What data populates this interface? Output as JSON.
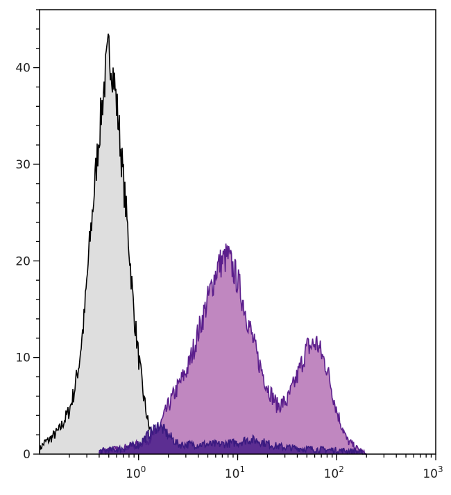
{
  "chart_data": {
    "type": "area",
    "title": "",
    "xlabel": "",
    "ylabel": "",
    "x_scale": "log",
    "xlim": [
      0.1,
      1000
    ],
    "ylim": [
      0,
      46
    ],
    "grid": false,
    "x_ticks": [
      {
        "value": 1,
        "base": "10",
        "exp": "0"
      },
      {
        "value": 10,
        "base": "10",
        "exp": "1"
      },
      {
        "value": 100,
        "base": "10",
        "exp": "2"
      },
      {
        "value": 1000,
        "base": "10",
        "exp": "3"
      }
    ],
    "y_ticks": [
      "0",
      "10",
      "20",
      "30",
      "40"
    ],
    "series": [
      {
        "fill": "#dedede",
        "line": "#000000",
        "log10_x": [
          -1.0,
          -0.95,
          -0.9,
          -0.85,
          -0.8,
          -0.75,
          -0.7,
          -0.65,
          -0.6,
          -0.55,
          -0.5,
          -0.45,
          -0.4,
          -0.35,
          -0.3,
          -0.25,
          -0.2,
          -0.15,
          -0.1,
          -0.05,
          0,
          0.05,
          0.1,
          0.15,
          0.2,
          0.25
        ],
        "values": [
          0.5,
          1.2,
          1.5,
          2,
          2.5,
          3.5,
          4.5,
          6.5,
          9.5,
          14,
          21,
          27,
          33,
          38,
          42,
          39,
          34,
          28,
          22,
          15,
          10,
          6,
          3,
          1.5,
          0.5,
          0
        ]
      },
      {
        "fill": "#c087c0",
        "line": "#5b1e8c",
        "log10_x": [
          -0.4,
          -0.3,
          -0.2,
          -0.1,
          0,
          0.1,
          0.2,
          0.3,
          0.4,
          0.5,
          0.6,
          0.7,
          0.8,
          0.9,
          1.0,
          1.1,
          1.2,
          1.3,
          1.4,
          1.5,
          1.6,
          1.7,
          1.8,
          1.9,
          2.0,
          2.1,
          2.2,
          2.3
        ],
        "values": [
          0.3,
          0.5,
          0.5,
          0.8,
          1,
          1.5,
          2.5,
          5,
          7,
          9,
          12.5,
          16,
          19.5,
          20.5,
          18,
          14,
          10,
          7,
          5,
          5.5,
          8,
          11,
          11.5,
          9,
          4.5,
          1.5,
          0.6,
          0
        ]
      },
      {
        "fill": "#4a1f8a",
        "line": "#3a1a80",
        "log10_x": [
          -0.4,
          -0.2,
          0,
          0.1,
          0.2,
          0.3,
          0.4,
          0.6,
          0.8,
          1.0,
          1.1,
          1.2,
          1.4,
          1.6,
          1.8,
          2.0,
          2.2,
          2.3
        ],
        "values": [
          0.3,
          0.5,
          1,
          2,
          3,
          2,
          1,
          1,
          1,
          1.2,
          1.5,
          1.4,
          0.8,
          0.6,
          0.5,
          0.4,
          0.3,
          0
        ]
      }
    ]
  }
}
